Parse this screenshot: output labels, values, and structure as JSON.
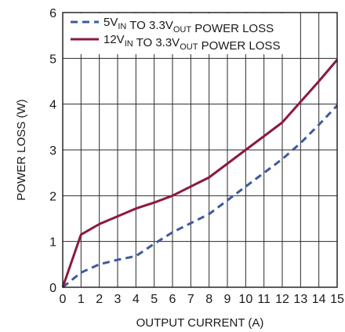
{
  "chart_data": {
    "type": "line",
    "xlabel": "OUTPUT CURRENT (A)",
    "ylabel": "POWER LOSS (W)",
    "xlim": [
      0,
      15
    ],
    "ylim": [
      0,
      6
    ],
    "x_ticks": [
      0,
      1,
      2,
      3,
      4,
      5,
      6,
      7,
      8,
      9,
      10,
      11,
      12,
      13,
      14,
      15
    ],
    "y_ticks": [
      0,
      1,
      2,
      3,
      4,
      5,
      6
    ],
    "grid": true,
    "legend_position": "top-left",
    "series": [
      {
        "name": "5VIN TO 3.3VOUT POWER LOSS",
        "name_parts": [
          {
            "t": "5V",
            "sub": false
          },
          {
            "t": "IN",
            "sub": true
          },
          {
            "t": " TO 3.3V",
            "sub": false
          },
          {
            "t": "OUT",
            "sub": true
          },
          {
            "t": " POWER LOSS",
            "sub": false
          }
        ],
        "color": "#3d5a9e",
        "style": "dashed",
        "x": [
          0,
          1,
          2,
          3,
          4,
          5,
          6,
          7,
          8,
          9,
          10,
          11,
          12,
          13,
          14,
          15
        ],
        "y": [
          0,
          0.32,
          0.5,
          0.6,
          0.68,
          0.95,
          1.2,
          1.4,
          1.6,
          1.9,
          2.2,
          2.5,
          2.8,
          3.15,
          3.55,
          3.97
        ]
      },
      {
        "name": "12VIN TO 3.3VOUT POWER LOSS",
        "name_parts": [
          {
            "t": "12V",
            "sub": false
          },
          {
            "t": "IN",
            "sub": true
          },
          {
            "t": " TO 3.3V",
            "sub": false
          },
          {
            "t": "OUT",
            "sub": true
          },
          {
            "t": " POWER LOSS",
            "sub": false
          }
        ],
        "color": "#8b1a3c",
        "style": "solid",
        "x": [
          0,
          1,
          2,
          3,
          4,
          5,
          6,
          7,
          8,
          9,
          10,
          11,
          12,
          13,
          14,
          15
        ],
        "y": [
          0,
          1.15,
          1.38,
          1.55,
          1.72,
          1.85,
          2.0,
          2.2,
          2.4,
          2.7,
          3.0,
          3.3,
          3.6,
          4.05,
          4.5,
          4.97
        ]
      }
    ]
  }
}
